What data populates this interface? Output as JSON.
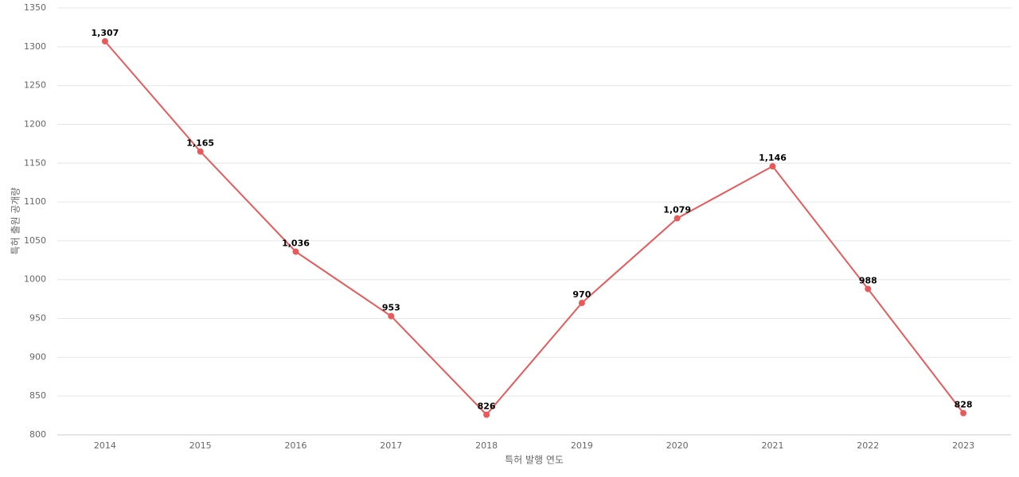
{
  "chart_data": {
    "type": "line",
    "x_label": "특허 발행 연도",
    "y_label": "특허 출원 공개량",
    "categories": [
      "2014",
      "2015",
      "2016",
      "2017",
      "2018",
      "2019",
      "2020",
      "2021",
      "2022",
      "2023"
    ],
    "series": [
      {
        "name": "특허 출원 공개량",
        "color": "#e85a5a",
        "values": [
          1307,
          1165,
          1036,
          953,
          826,
          970,
          1079,
          1146,
          988,
          828
        ],
        "value_labels": [
          "1,307",
          "1,165",
          "1,036",
          "953",
          "826",
          "970",
          "1,079",
          "1,146",
          "988",
          "828"
        ]
      }
    ],
    "ylim": [
      800,
      1350
    ],
    "yticks": [
      800,
      850,
      900,
      950,
      1000,
      1050,
      1100,
      1150,
      1200,
      1250,
      1300,
      1350
    ],
    "grid": true
  }
}
